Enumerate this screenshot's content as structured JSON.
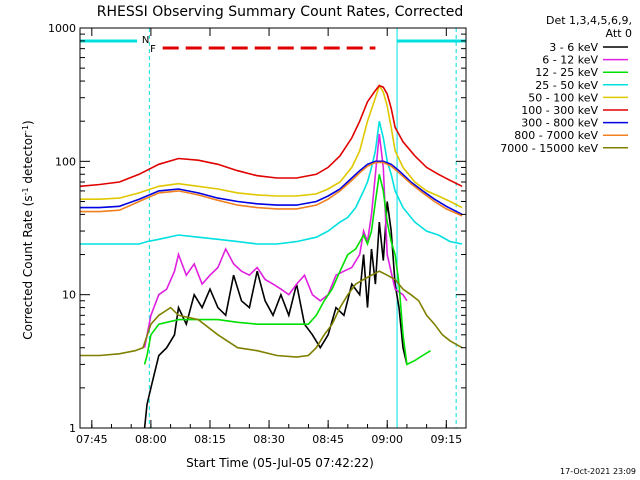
{
  "chart_data": {
    "type": "line",
    "title": "RHESSI Observing Summary Count Rates, Corrected",
    "xlabel": "Start Time (05-Jul-05 07:42:22)",
    "ylabel_main": "Corrected Count Rate (s",
    "ylabel_sup1": "-1",
    "ylabel_mid": " detector",
    "ylabel_sup2": "-1",
    "ylabel_end": ")",
    "yscale": "log",
    "ylim": [
      1,
      1000
    ],
    "xlim_minutes_after_0742": [
      0,
      98
    ],
    "x_ticks": [
      "07:45",
      "08:00",
      "08:15",
      "08:30",
      "08:45",
      "09:00",
      "09:15"
    ],
    "y_ticks": [
      "1",
      "10",
      "100",
      "1000"
    ],
    "detector_info_line1": "Det 1,3,4,5,6,9,",
    "detector_info_line2": "Att 0",
    "timestamp": "17-Oct-2021 23:09",
    "flag_labels": {
      "night": "N",
      "flare": "F"
    },
    "legend": [
      {
        "name": "3 - 6 keV",
        "color": "#000000"
      },
      {
        "name": "6 - 12 keV",
        "color": "#e020e0"
      },
      {
        "name": "12 - 25 keV",
        "color": "#00e000"
      },
      {
        "name": "25 - 50 keV",
        "color": "#00e0e0"
      },
      {
        "name": "50 - 100 keV",
        "color": "#e0c800"
      },
      {
        "name": "100 - 300 keV",
        "color": "#e00000"
      },
      {
        "name": "300 - 800 keV",
        "color": "#0000e0"
      },
      {
        "name": "800 - 7000 keV",
        "color": "#f08020"
      },
      {
        "name": "7000 - 15000 keV",
        "color": "#808000"
      }
    ],
    "series": [
      {
        "name": "3 - 6 keV",
        "color": "#000000",
        "points": [
          [
            16.4,
            1
          ],
          [
            17,
            1.5
          ],
          [
            18,
            2
          ],
          [
            20,
            3.5
          ],
          [
            22,
            4
          ],
          [
            24,
            5
          ],
          [
            25,
            8
          ],
          [
            27,
            6
          ],
          [
            29,
            10
          ],
          [
            31,
            8
          ],
          [
            33,
            11
          ],
          [
            35,
            8
          ],
          [
            37,
            7
          ],
          [
            39,
            14
          ],
          [
            41,
            9
          ],
          [
            43,
            8
          ],
          [
            45,
            15
          ],
          [
            47,
            9
          ],
          [
            49,
            7
          ],
          [
            51,
            10
          ],
          [
            53,
            7
          ],
          [
            55,
            12
          ],
          [
            57,
            6
          ],
          [
            59,
            5
          ],
          [
            61,
            4
          ],
          [
            63,
            5
          ],
          [
            65,
            8
          ],
          [
            67,
            7
          ],
          [
            69,
            12
          ],
          [
            71,
            10
          ],
          [
            72,
            20
          ],
          [
            73,
            8
          ],
          [
            74,
            22
          ],
          [
            75,
            12
          ],
          [
            76,
            35
          ],
          [
            77,
            18
          ],
          [
            78,
            50
          ],
          [
            79,
            30
          ],
          [
            80,
            12
          ],
          [
            81,
            8
          ],
          [
            82,
            4
          ],
          [
            83,
            3
          ]
        ]
      },
      {
        "name": "6 - 12 keV",
        "color": "#e020e0",
        "points": [
          [
            16.4,
            4
          ],
          [
            18,
            7
          ],
          [
            20,
            10
          ],
          [
            22,
            11
          ],
          [
            24,
            15
          ],
          [
            25,
            20
          ],
          [
            27,
            14
          ],
          [
            29,
            17
          ],
          [
            31,
            12
          ],
          [
            33,
            14
          ],
          [
            35,
            16
          ],
          [
            37,
            22
          ],
          [
            39,
            17
          ],
          [
            41,
            15
          ],
          [
            43,
            14
          ],
          [
            45,
            16
          ],
          [
            47,
            13
          ],
          [
            49,
            12
          ],
          [
            51,
            11
          ],
          [
            53,
            10
          ],
          [
            55,
            12
          ],
          [
            57,
            14
          ],
          [
            59,
            10
          ],
          [
            61,
            9
          ],
          [
            63,
            10
          ],
          [
            65,
            14
          ],
          [
            67,
            15
          ],
          [
            69,
            16
          ],
          [
            71,
            20
          ],
          [
            72,
            30
          ],
          [
            73,
            25
          ],
          [
            74,
            40
          ],
          [
            75,
            80
          ],
          [
            76,
            160
          ],
          [
            77,
            90
          ],
          [
            78,
            20
          ],
          [
            80,
            11
          ],
          [
            82,
            10
          ],
          [
            83,
            9
          ]
        ]
      },
      {
        "name": "12 - 25 keV",
        "color": "#00e000",
        "points": [
          [
            16.4,
            3
          ],
          [
            17,
            3.5
          ],
          [
            18,
            5
          ],
          [
            20,
            6
          ],
          [
            25,
            6.5
          ],
          [
            30,
            6.5
          ],
          [
            35,
            6.5
          ],
          [
            40,
            6.2
          ],
          [
            45,
            6
          ],
          [
            50,
            6
          ],
          [
            55,
            6
          ],
          [
            58,
            6
          ],
          [
            60,
            7
          ],
          [
            62,
            9
          ],
          [
            64,
            11
          ],
          [
            66,
            15
          ],
          [
            68,
            20
          ],
          [
            70,
            22
          ],
          [
            72,
            28
          ],
          [
            73,
            24
          ],
          [
            74,
            30
          ],
          [
            75,
            50
          ],
          [
            76,
            80
          ],
          [
            77,
            60
          ],
          [
            78,
            35
          ],
          [
            79,
            25
          ],
          [
            80,
            20
          ],
          [
            81,
            12
          ],
          [
            82,
            5
          ],
          [
            83,
            3
          ],
          [
            85,
            3.2
          ],
          [
            87,
            3.5
          ],
          [
            89,
            3.8
          ]
        ]
      },
      {
        "name": "25 - 50 keV",
        "color": "#00e0e0",
        "points": [
          [
            0,
            24
          ],
          [
            5,
            24
          ],
          [
            10,
            24
          ],
          [
            15,
            24
          ],
          [
            17,
            25
          ],
          [
            20,
            26
          ],
          [
            25,
            28
          ],
          [
            30,
            27
          ],
          [
            35,
            26
          ],
          [
            40,
            25
          ],
          [
            45,
            24
          ],
          [
            50,
            24
          ],
          [
            55,
            25
          ],
          [
            60,
            27
          ],
          [
            63,
            30
          ],
          [
            66,
            35
          ],
          [
            68,
            38
          ],
          [
            70,
            45
          ],
          [
            72,
            60
          ],
          [
            73,
            70
          ],
          [
            74,
            90
          ],
          [
            75,
            120
          ],
          [
            76,
            200
          ],
          [
            77,
            150
          ],
          [
            78,
            100
          ],
          [
            79,
            80
          ],
          [
            80,
            60
          ],
          [
            82,
            45
          ],
          [
            85,
            35
          ],
          [
            88,
            30
          ],
          [
            91,
            28
          ],
          [
            94,
            25
          ],
          [
            97,
            24
          ]
        ]
      },
      {
        "name": "50 - 100 keV",
        "color": "#e0c800",
        "points": [
          [
            0,
            52
          ],
          [
            5,
            52
          ],
          [
            10,
            53
          ],
          [
            15,
            58
          ],
          [
            20,
            65
          ],
          [
            25,
            68
          ],
          [
            30,
            65
          ],
          [
            35,
            62
          ],
          [
            40,
            58
          ],
          [
            45,
            56
          ],
          [
            50,
            55
          ],
          [
            55,
            55
          ],
          [
            60,
            57
          ],
          [
            63,
            62
          ],
          [
            66,
            70
          ],
          [
            69,
            90
          ],
          [
            71,
            120
          ],
          [
            73,
            200
          ],
          [
            75,
            300
          ],
          [
            76,
            370
          ],
          [
            77,
            330
          ],
          [
            78,
            260
          ],
          [
            79,
            180
          ],
          [
            80,
            120
          ],
          [
            82,
            90
          ],
          [
            85,
            70
          ],
          [
            88,
            60
          ],
          [
            91,
            55
          ],
          [
            94,
            50
          ],
          [
            97,
            45
          ]
        ]
      },
      {
        "name": "100 - 300 keV",
        "color": "#e00000",
        "points": [
          [
            0,
            65
          ],
          [
            5,
            67
          ],
          [
            10,
            70
          ],
          [
            15,
            80
          ],
          [
            20,
            95
          ],
          [
            25,
            105
          ],
          [
            30,
            102
          ],
          [
            35,
            95
          ],
          [
            40,
            85
          ],
          [
            45,
            78
          ],
          [
            50,
            75
          ],
          [
            55,
            75
          ],
          [
            60,
            80
          ],
          [
            63,
            90
          ],
          [
            66,
            110
          ],
          [
            69,
            150
          ],
          [
            71,
            200
          ],
          [
            73,
            280
          ],
          [
            75,
            340
          ],
          [
            76,
            370
          ],
          [
            77,
            360
          ],
          [
            78,
            320
          ],
          [
            79,
            250
          ],
          [
            80,
            180
          ],
          [
            82,
            140
          ],
          [
            85,
            110
          ],
          [
            88,
            90
          ],
          [
            91,
            80
          ],
          [
            94,
            72
          ],
          [
            97,
            65
          ]
        ]
      },
      {
        "name": "300 - 800 keV",
        "color": "#0000e0",
        "points": [
          [
            0,
            45
          ],
          [
            5,
            45
          ],
          [
            10,
            46
          ],
          [
            15,
            52
          ],
          [
            20,
            60
          ],
          [
            25,
            62
          ],
          [
            30,
            58
          ],
          [
            35,
            53
          ],
          [
            40,
            50
          ],
          [
            45,
            48
          ],
          [
            50,
            47
          ],
          [
            55,
            47
          ],
          [
            60,
            50
          ],
          [
            63,
            55
          ],
          [
            66,
            62
          ],
          [
            69,
            75
          ],
          [
            71,
            85
          ],
          [
            73,
            95
          ],
          [
            75,
            100
          ],
          [
            77,
            100
          ],
          [
            79,
            95
          ],
          [
            81,
            85
          ],
          [
            84,
            70
          ],
          [
            87,
            60
          ],
          [
            90,
            52
          ],
          [
            93,
            46
          ],
          [
            97,
            40
          ]
        ]
      },
      {
        "name": "800 - 7000 keV",
        "color": "#f08020",
        "points": [
          [
            0,
            42
          ],
          [
            5,
            42
          ],
          [
            10,
            43
          ],
          [
            15,
            50
          ],
          [
            20,
            58
          ],
          [
            25,
            60
          ],
          [
            30,
            56
          ],
          [
            35,
            51
          ],
          [
            40,
            47
          ],
          [
            45,
            45
          ],
          [
            50,
            44
          ],
          [
            55,
            44
          ],
          [
            60,
            47
          ],
          [
            63,
            52
          ],
          [
            66,
            60
          ],
          [
            69,
            72
          ],
          [
            71,
            82
          ],
          [
            73,
            92
          ],
          [
            75,
            98
          ],
          [
            77,
            98
          ],
          [
            79,
            92
          ],
          [
            81,
            82
          ],
          [
            84,
            68
          ],
          [
            87,
            58
          ],
          [
            90,
            50
          ],
          [
            93,
            44
          ],
          [
            97,
            39
          ]
        ]
      },
      {
        "name": "7000 - 15000 keV",
        "color": "#808000",
        "points": [
          [
            0,
            3.5
          ],
          [
            5,
            3.5
          ],
          [
            10,
            3.6
          ],
          [
            14,
            3.8
          ],
          [
            16,
            4
          ],
          [
            18,
            6
          ],
          [
            20,
            7
          ],
          [
            23,
            8
          ],
          [
            25,
            7
          ],
          [
            30,
            6.5
          ],
          [
            35,
            5
          ],
          [
            40,
            4
          ],
          [
            45,
            3.8
          ],
          [
            50,
            3.5
          ],
          [
            55,
            3.4
          ],
          [
            58,
            3.5
          ],
          [
            60,
            4
          ],
          [
            62,
            5
          ],
          [
            64,
            6
          ],
          [
            66,
            8
          ],
          [
            68,
            10
          ],
          [
            70,
            12
          ],
          [
            72,
            13
          ],
          [
            74,
            14
          ],
          [
            76,
            15
          ],
          [
            78,
            14
          ],
          [
            80,
            13
          ],
          [
            82,
            11
          ],
          [
            84,
            10
          ],
          [
            86,
            9
          ],
          [
            88,
            7
          ],
          [
            90,
            6
          ],
          [
            92,
            5
          ],
          [
            94,
            4.5
          ],
          [
            97,
            4
          ]
        ]
      }
    ]
  }
}
